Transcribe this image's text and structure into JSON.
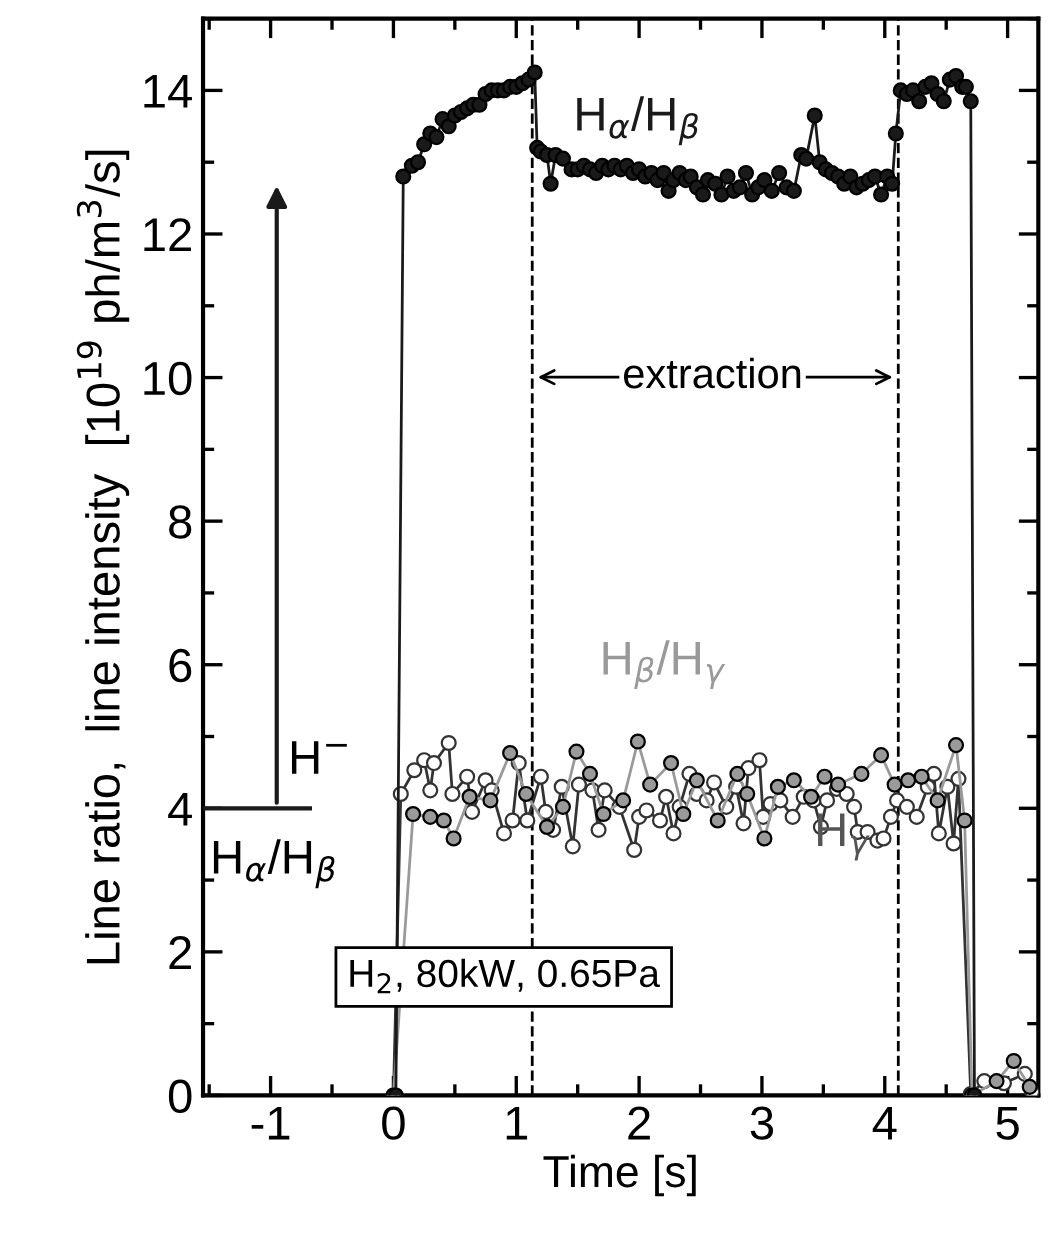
{
  "chart_data": {
    "type": "line",
    "xlabel": "Time [s]",
    "ylabel": "Line ratio,  line intensity  [10$^{19}$ ph/m$^{3}$/s]",
    "xlim": [
      -1.55,
      5.25
    ],
    "xticks": [
      -1,
      0,
      1,
      2,
      3,
      4,
      5
    ],
    "ylim": [
      0,
      15
    ],
    "yticks": [
      0,
      2,
      4,
      6,
      8,
      10,
      12,
      14
    ],
    "grid": false,
    "legend": false,
    "marker": "circle",
    "line_style": "solid",
    "series": [
      {
        "name": "H$_{α}$/H$_{β}$",
        "color": "#1a1a1a",
        "x": [
          0.02,
          0.08,
          0.15,
          0.2,
          0.25,
          0.3,
          0.35,
          0.4,
          0.45,
          0.5,
          0.55,
          0.6,
          0.65,
          0.7,
          0.75,
          0.8,
          0.85,
          0.9,
          0.95,
          1.0,
          1.05,
          1.1,
          1.15,
          1.17,
          1.2,
          1.25,
          1.28,
          1.32,
          1.38,
          1.45,
          1.5,
          1.55,
          1.6,
          1.65,
          1.7,
          1.75,
          1.8,
          1.85,
          1.9,
          1.95,
          2.0,
          2.05,
          2.1,
          2.15,
          2.2,
          2.24,
          2.28,
          2.33,
          2.38,
          2.42,
          2.47,
          2.52,
          2.56,
          2.62,
          2.67,
          2.72,
          2.77,
          2.82,
          2.87,
          2.92,
          2.97,
          3.02,
          3.08,
          3.14,
          3.2,
          3.26,
          3.32,
          3.36,
          3.43,
          3.47,
          3.52,
          3.57,
          3.62,
          3.67,
          3.72,
          3.77,
          3.82,
          3.87,
          3.92,
          3.97,
          4.02,
          4.06,
          4.09,
          4.13,
          4.18,
          4.23,
          4.28,
          4.33,
          4.38,
          4.43,
          4.48,
          4.53,
          4.58,
          4.63,
          4.66,
          4.7,
          4.73
        ],
        "values": [
          0,
          12.8,
          12.95,
          13.0,
          13.25,
          13.4,
          13.35,
          13.6,
          13.5,
          13.65,
          13.7,
          13.75,
          13.8,
          13.8,
          13.95,
          14.0,
          14.0,
          14.0,
          14.05,
          14.05,
          14.1,
          14.15,
          14.25,
          13.2,
          13.15,
          13.1,
          12.7,
          13.1,
          13.05,
          12.9,
          12.9,
          12.95,
          12.9,
          12.85,
          12.95,
          12.9,
          12.95,
          12.9,
          12.95,
          12.85,
          12.9,
          12.8,
          12.85,
          12.75,
          12.85,
          12.6,
          12.75,
          12.85,
          12.75,
          12.8,
          12.65,
          12.55,
          12.75,
          12.7,
          12.55,
          12.8,
          12.6,
          12.65,
          12.85,
          12.55,
          12.65,
          12.75,
          12.6,
          12.85,
          12.65,
          12.6,
          13.1,
          13.05,
          13.65,
          13.0,
          12.9,
          12.85,
          12.8,
          12.7,
          12.8,
          12.65,
          12.7,
          12.75,
          12.8,
          12.55,
          12.8,
          12.7,
          13.4,
          14.0,
          13.95,
          14.0,
          13.85,
          14.05,
          14.1,
          13.95,
          13.85,
          14.15,
          14.2,
          14.05,
          14.05,
          13.85,
          0
        ]
      },
      {
        "name": "H$_{β}$/H$_{γ}$",
        "color": "#9a9a9a",
        "x": [
          0,
          0.16,
          0.3,
          0.41,
          0.49,
          0.62,
          0.79,
          0.95,
          1.08,
          1.25,
          1.38,
          1.49,
          1.6,
          1.71,
          1.87,
          1.99,
          2.09,
          2.26,
          2.36,
          2.47,
          2.64,
          2.8,
          2.88,
          3.02,
          3.13,
          3.26,
          3.4,
          3.51,
          3.62,
          3.81,
          3.97,
          4.08,
          4.19,
          4.3,
          4.43,
          4.58,
          4.65,
          4.71,
          4.91,
          5.05,
          5.18
        ],
        "values": [
          0,
          3.92,
          3.88,
          3.83,
          3.58,
          4.16,
          4.11,
          4.77,
          4.2,
          3.74,
          4.02,
          4.79,
          4.48,
          3.92,
          4.11,
          4.93,
          4.33,
          4.63,
          3.92,
          4.39,
          3.83,
          4.48,
          4.2,
          3.58,
          4.3,
          4.39,
          4.16,
          4.44,
          4.33,
          4.48,
          4.74,
          4.33,
          4.39,
          4.44,
          4.11,
          4.88,
          3.83,
          0,
          0.2,
          0.48,
          0.12
        ]
      },
      {
        "name": "H$_{γ}$",
        "color": "#ffffff",
        "x": [
          0,
          0.06,
          0.17,
          0.25,
          0.3,
          0.33,
          0.45,
          0.48,
          0.6,
          0.64,
          0.75,
          0.8,
          0.9,
          0.97,
          1.02,
          1.09,
          1.2,
          1.24,
          1.3,
          1.37,
          1.46,
          1.51,
          1.62,
          1.67,
          1.72,
          1.84,
          1.96,
          2.0,
          2.06,
          2.17,
          2.22,
          2.28,
          2.33,
          2.41,
          2.47,
          2.55,
          2.61,
          2.71,
          2.79,
          2.85,
          2.89,
          2.98,
          3.01,
          3.07,
          3.15,
          3.25,
          3.34,
          3.42,
          3.48,
          3.53,
          3.61,
          3.69,
          3.75,
          3.78,
          3.86,
          3.94,
          3.99,
          4.05,
          4.1,
          4.18,
          4.26,
          4.35,
          4.4,
          4.44,
          4.51,
          4.56,
          4.6,
          4.7,
          4.81,
          4.97,
          5.14,
          5.2
        ],
        "values": [
          0,
          4.2,
          4.53,
          4.67,
          4.25,
          4.63,
          4.91,
          4.2,
          4.44,
          3.95,
          4.39,
          4.25,
          3.65,
          3.83,
          4.63,
          3.83,
          4.44,
          3.95,
          3.7,
          4.3,
          3.47,
          4.33,
          4.25,
          3.7,
          4.25,
          4.02,
          3.42,
          3.88,
          3.97,
          3.83,
          4.16,
          3.65,
          4.02,
          4.48,
          4.2,
          4.11,
          4.36,
          4.02,
          4.3,
          3.79,
          4.56,
          4.67,
          3.88,
          4.06,
          4.11,
          3.88,
          4.16,
          4.11,
          3.74,
          4.11,
          4.27,
          4.2,
          4.02,
          3.67,
          3.67,
          3.55,
          3.58,
          3.88,
          4.11,
          4.02,
          3.88,
          4.3,
          4.48,
          3.65,
          4.3,
          3.51,
          4.41,
          0.02,
          0.2,
          0.17,
          0.3,
          0.05
        ]
      }
    ],
    "ref_lines": [
      {
        "axis": "x",
        "value": 1.13,
        "color": "#000000",
        "line_style": "dashed"
      },
      {
        "axis": "x",
        "value": 4.11,
        "color": "#000000",
        "line_style": "dashed"
      }
    ],
    "annotations": [
      "extraction",
      "H$^{−}$",
      "H$_{α}$/H$_{β}$",
      "H$_{2}$, 80kW, 0.65Pa"
    ]
  }
}
